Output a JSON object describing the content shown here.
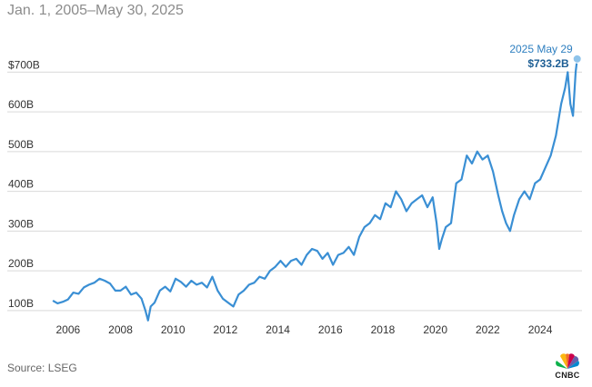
{
  "subtitle": "Jan. 1, 2005–May 30, 2025",
  "source": "Source: LSEG",
  "logo": {
    "text": "CNBC",
    "icon": "peacock-icon"
  },
  "colors": {
    "line": "#3a8fd4",
    "grid": "#d9d9d9",
    "marker": "#8ec3ea",
    "annotation_date": "#2e7fc0",
    "annotation_value": "#1d5e94"
  },
  "chart_data": {
    "type": "line",
    "title": "",
    "xlabel": "",
    "ylabel": "",
    "xlim": [
      2005.0,
      2025.42
    ],
    "ylim": [
      95,
      790
    ],
    "grid": {
      "horizontal": true,
      "vertical": false
    },
    "y_ticks": [
      {
        "value": 100,
        "label": "100B"
      },
      {
        "value": 200,
        "label": "200B"
      },
      {
        "value": 300,
        "label": "300B"
      },
      {
        "value": 400,
        "label": "400B"
      },
      {
        "value": 500,
        "label": "500B"
      },
      {
        "value": 600,
        "label": "600B"
      },
      {
        "value": 700,
        "label": "$700B"
      }
    ],
    "x_ticks": [
      {
        "value": 2006,
        "label": "2006"
      },
      {
        "value": 2008,
        "label": "2008"
      },
      {
        "value": 2010,
        "label": "2010"
      },
      {
        "value": 2012,
        "label": "2012"
      },
      {
        "value": 2014,
        "label": "2014"
      },
      {
        "value": 2016,
        "label": "2016"
      },
      {
        "value": 2018,
        "label": "2018"
      },
      {
        "value": 2020,
        "label": "2020"
      },
      {
        "value": 2022,
        "label": "2022"
      },
      {
        "value": 2024,
        "label": "2024"
      }
    ],
    "annotation": {
      "date_label": "2025 May 29",
      "value_label": "$733.2B",
      "x": 2025.41,
      "y": 733.2
    },
    "series": [
      {
        "x": [
          2005.42,
          2005.6,
          2005.8,
          2006.0,
          2006.2,
          2006.4,
          2006.6,
          2006.8,
          2007.0,
          2007.2,
          2007.4,
          2007.6,
          2007.8,
          2008.0,
          2008.2,
          2008.4,
          2008.6,
          2008.8,
          2008.95,
          2009.05,
          2009.15,
          2009.3,
          2009.5,
          2009.7,
          2009.9,
          2010.1,
          2010.3,
          2010.5,
          2010.7,
          2010.9,
          2011.1,
          2011.3,
          2011.5,
          2011.7,
          2011.9,
          2012.1,
          2012.3,
          2012.5,
          2012.7,
          2012.9,
          2013.1,
          2013.3,
          2013.5,
          2013.7,
          2013.9,
          2014.1,
          2014.3,
          2014.5,
          2014.7,
          2014.9,
          2015.1,
          2015.3,
          2015.5,
          2015.7,
          2015.9,
          2016.1,
          2016.3,
          2016.5,
          2016.7,
          2016.9,
          2017.1,
          2017.3,
          2017.5,
          2017.7,
          2017.9,
          2018.1,
          2018.3,
          2018.5,
          2018.7,
          2018.9,
          2019.1,
          2019.3,
          2019.5,
          2019.7,
          2019.9,
          2020.05,
          2020.15,
          2020.25,
          2020.4,
          2020.6,
          2020.8,
          2021.0,
          2021.2,
          2021.4,
          2021.6,
          2021.8,
          2022.0,
          2022.2,
          2022.4,
          2022.55,
          2022.7,
          2022.85,
          2023.0,
          2023.2,
          2023.4,
          2023.6,
          2023.8,
          2024.0,
          2024.2,
          2024.4,
          2024.6,
          2024.8,
          2024.95,
          2025.05,
          2025.15,
          2025.25,
          2025.35,
          2025.41
        ],
        "y": [
          125,
          118,
          122,
          128,
          145,
          142,
          158,
          165,
          170,
          180,
          175,
          168,
          150,
          150,
          160,
          140,
          145,
          130,
          100,
          75,
          110,
          120,
          150,
          160,
          148,
          180,
          172,
          160,
          175,
          165,
          170,
          158,
          185,
          150,
          130,
          120,
          110,
          140,
          150,
          165,
          170,
          185,
          180,
          200,
          210,
          225,
          210,
          225,
          230,
          215,
          240,
          255,
          250,
          230,
          245,
          215,
          240,
          245,
          260,
          240,
          285,
          310,
          320,
          340,
          330,
          370,
          360,
          400,
          380,
          350,
          370,
          380,
          390,
          360,
          385,
          320,
          255,
          280,
          310,
          320,
          420,
          430,
          490,
          470,
          500,
          480,
          490,
          450,
          390,
          350,
          320,
          300,
          340,
          380,
          400,
          380,
          420,
          430,
          460,
          490,
          540,
          620,
          660,
          700,
          620,
          590,
          700,
          733.2
        ]
      }
    ]
  }
}
